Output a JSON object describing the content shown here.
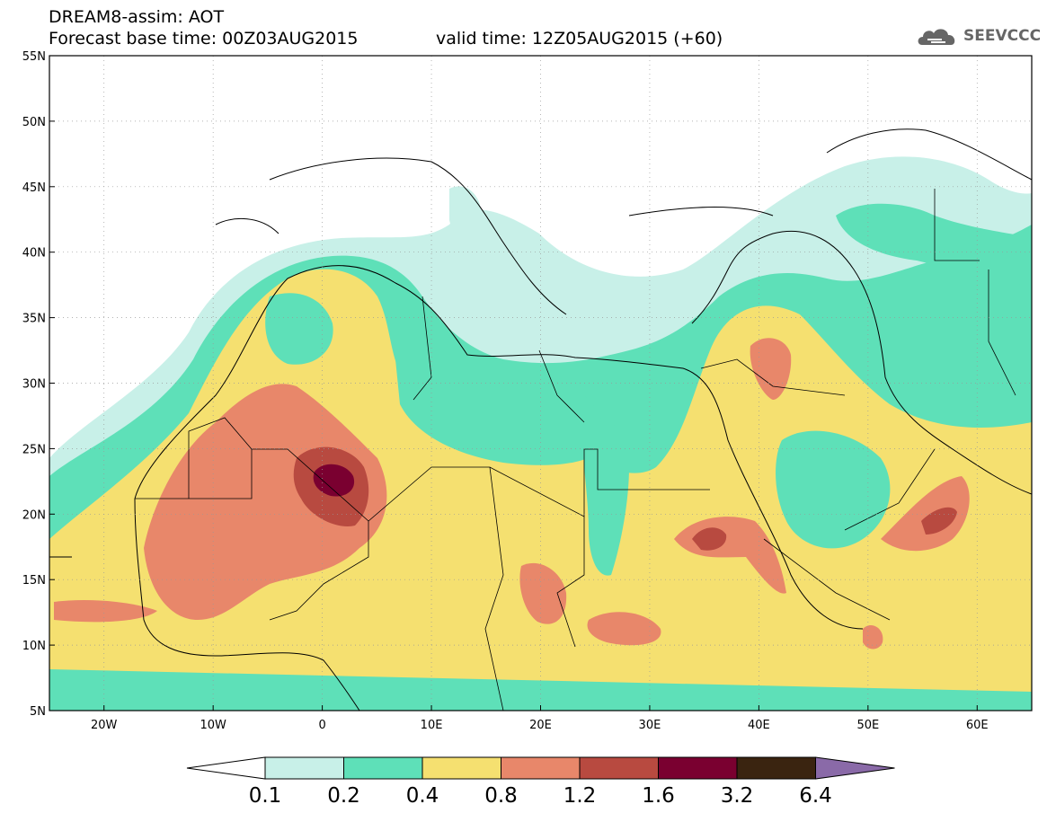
{
  "header": {
    "title_line1": "DREAM8-assim: AOT",
    "title_line2": "Forecast base time: 00Z03AUG2015",
    "valid_time": "valid time: 12Z05AUG2015 (+60)",
    "logo_text": "SEEVCCC"
  },
  "map": {
    "lon_labels": [
      "20W",
      "10W",
      "0",
      "10E",
      "20E",
      "30E",
      "40E",
      "50E",
      "60E"
    ],
    "lat_labels": [
      "55N",
      "50N",
      "45N",
      "40N",
      "35N",
      "30N",
      "25N",
      "20N",
      "15N",
      "10N",
      "5N"
    ],
    "extent": {
      "lon_min": -25,
      "lon_max": 65,
      "lat_min": 5,
      "lat_max": 55
    }
  },
  "colorbar": {
    "labels": [
      "0.1",
      "0.2",
      "0.4",
      "0.8",
      "1.2",
      "1.6",
      "3.2",
      "6.4"
    ],
    "colors": [
      "#c8f0e8",
      "#5ee0b8",
      "#f5e070",
      "#e8876a",
      "#b84a40",
      "#7a0030",
      "#3a2410",
      "#8a6aa8"
    ]
  }
}
